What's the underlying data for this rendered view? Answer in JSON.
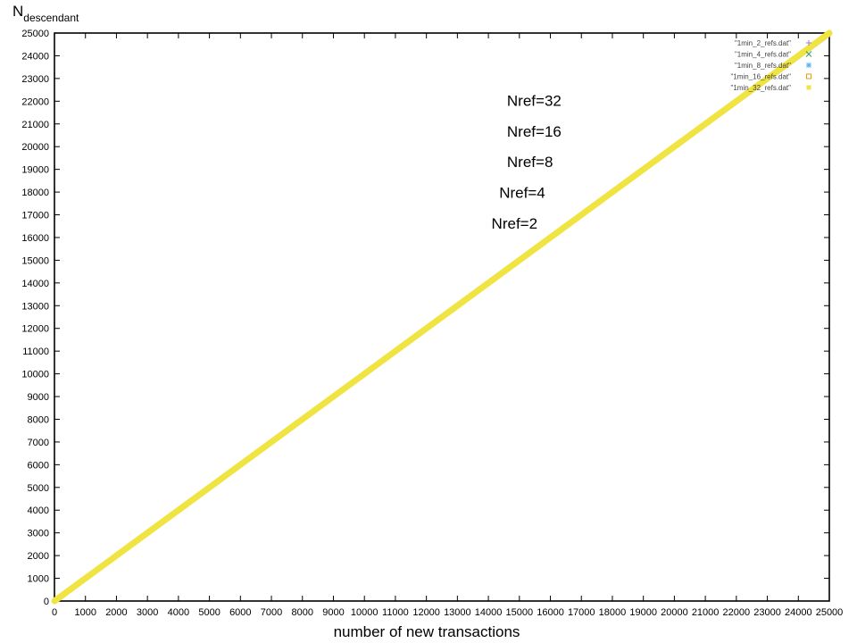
{
  "chart_data": {
    "type": "line",
    "title": "",
    "xlabel": "number of new transactions",
    "ylabel": "N",
    "ylabel_subscript": "descendant",
    "xlim": [
      0,
      25000
    ],
    "ylim": [
      0,
      25000
    ],
    "xticks": [
      0,
      1000,
      2000,
      3000,
      4000,
      5000,
      6000,
      7000,
      8000,
      9000,
      10000,
      11000,
      12000,
      13000,
      14000,
      15000,
      16000,
      17000,
      18000,
      19000,
      20000,
      21000,
      22000,
      23000,
      24000,
      25000
    ],
    "yticks": [
      0,
      1000,
      2000,
      3000,
      4000,
      5000,
      6000,
      7000,
      8000,
      9000,
      10000,
      11000,
      12000,
      13000,
      14000,
      15000,
      16000,
      17000,
      18000,
      19000,
      20000,
      21000,
      22000,
      23000,
      24000,
      25000
    ],
    "grid": false,
    "legend_position": "top-right",
    "series": [
      {
        "name": "\"1min_2_refs.dat\"",
        "color": "#9b7fd1",
        "marker": "plus",
        "x": [
          0,
          25000
        ],
        "y": [
          0,
          24900
        ]
      },
      {
        "name": "\"1min_4_refs.dat\"",
        "color": "#2e9a5f",
        "marker": "cross",
        "x": [
          0,
          25000
        ],
        "y": [
          0,
          24920
        ]
      },
      {
        "name": "\"1min_8_refs.dat\"",
        "color": "#56b4e9",
        "marker": "asterisk",
        "x": [
          0,
          25000
        ],
        "y": [
          0,
          24940
        ]
      },
      {
        "name": "\"1min_16_refs.dat\"",
        "color": "#e69f00",
        "marker": "open-square",
        "x": [
          0,
          25000
        ],
        "y": [
          0,
          24960
        ]
      },
      {
        "name": "\"1min_32_refs.dat\"",
        "color": "#f0e442",
        "marker": "filled-square",
        "x": [
          0,
          25000
        ],
        "y": [
          0,
          25000
        ]
      }
    ],
    "annotations": [
      {
        "text": "Nref=32",
        "x": 14600,
        "y": 21800
      },
      {
        "text": "Nref=16",
        "x": 14600,
        "y": 20450
      },
      {
        "text": "Nref=8",
        "x": 14600,
        "y": 19100
      },
      {
        "text": "Nref=4",
        "x": 14350,
        "y": 17750
      },
      {
        "text": "Nref=2",
        "x": 14100,
        "y": 16400
      }
    ]
  }
}
